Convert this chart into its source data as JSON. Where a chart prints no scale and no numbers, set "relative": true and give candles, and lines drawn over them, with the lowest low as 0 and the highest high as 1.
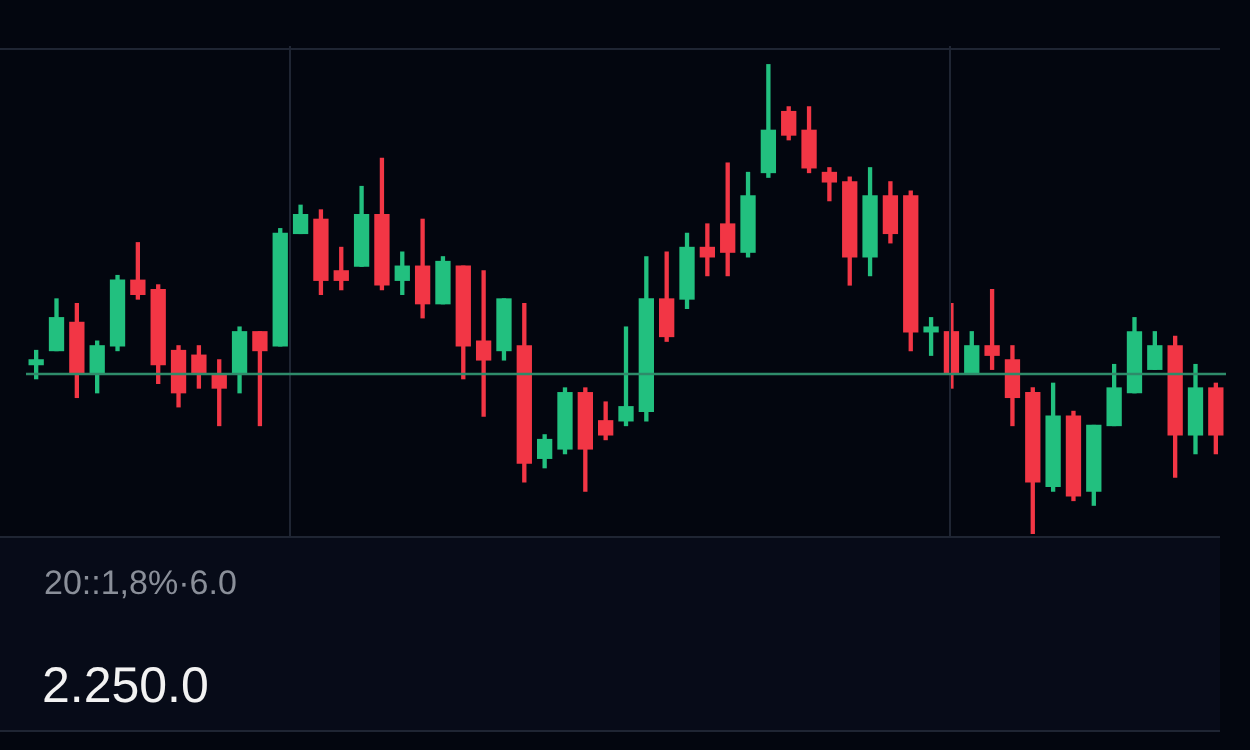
{
  "chart_data": {
    "type": "candlestick",
    "relative": true,
    "categories": [
      null,
      null,
      null,
      null,
      null,
      null,
      null,
      null,
      null,
      null,
      null,
      null,
      null,
      null,
      null,
      null,
      null,
      null,
      null,
      null,
      null,
      null,
      null,
      null,
      null,
      null,
      null,
      null,
      null,
      null,
      null,
      null,
      null,
      null,
      null,
      null,
      null,
      null,
      null,
      null,
      null,
      null,
      null,
      null,
      null,
      null,
      null,
      null,
      null,
      null,
      null,
      null,
      null,
      null,
      null,
      null,
      null,
      null,
      null
    ],
    "ohlc": [
      [
        0.36,
        0.39,
        0.33,
        0.37
      ],
      [
        0.39,
        0.5,
        0.39,
        0.46
      ],
      [
        0.45,
        0.49,
        0.29,
        0.34
      ],
      [
        0.34,
        0.41,
        0.3,
        0.4
      ],
      [
        0.4,
        0.55,
        0.39,
        0.54
      ],
      [
        0.54,
        0.62,
        0.5,
        0.51
      ],
      [
        0.52,
        0.53,
        0.32,
        0.36
      ],
      [
        0.39,
        0.4,
        0.27,
        0.3
      ],
      [
        0.38,
        0.4,
        0.31,
        0.34
      ],
      [
        0.34,
        0.37,
        0.23,
        0.31
      ],
      [
        0.34,
        0.44,
        0.3,
        0.43
      ],
      [
        0.43,
        0.43,
        0.23,
        0.39
      ],
      [
        0.4,
        0.65,
        0.4,
        0.64
      ],
      [
        0.64,
        0.7,
        0.64,
        0.68
      ],
      [
        0.67,
        0.69,
        0.51,
        0.54
      ],
      [
        0.56,
        0.61,
        0.52,
        0.54
      ],
      [
        0.57,
        0.74,
        0.57,
        0.68
      ],
      [
        0.68,
        0.8,
        0.52,
        0.53
      ],
      [
        0.54,
        0.6,
        0.51,
        0.57
      ],
      [
        0.57,
        0.67,
        0.46,
        0.49
      ],
      [
        0.49,
        0.59,
        0.49,
        0.58
      ],
      [
        0.57,
        0.57,
        0.33,
        0.4
      ],
      [
        0.41,
        0.56,
        0.25,
        0.37
      ],
      [
        0.39,
        0.5,
        0.37,
        0.5
      ],
      [
        0.4,
        0.49,
        0.11,
        0.15
      ],
      [
        0.16,
        0.21,
        0.14,
        0.2
      ],
      [
        0.18,
        0.31,
        0.17,
        0.3
      ],
      [
        0.3,
        0.31,
        0.09,
        0.18
      ],
      [
        0.24,
        0.28,
        0.2,
        0.21
      ],
      [
        0.24,
        0.44,
        0.23,
        0.27
      ],
      [
        0.26,
        0.59,
        0.24,
        0.5
      ],
      [
        0.5,
        0.6,
        0.41,
        0.42
      ],
      [
        0.5,
        0.64,
        0.48,
        0.61
      ],
      [
        0.61,
        0.66,
        0.55,
        0.59
      ],
      [
        0.66,
        0.79,
        0.55,
        0.6
      ],
      [
        0.6,
        0.77,
        0.59,
        0.72
      ],
      [
        0.77,
        1.0,
        0.76,
        0.86
      ],
      [
        0.9,
        0.91,
        0.84,
        0.85
      ],
      [
        0.86,
        0.91,
        0.77,
        0.78
      ],
      [
        0.77,
        0.78,
        0.71,
        0.75
      ],
      [
        0.75,
        0.76,
        0.53,
        0.59
      ],
      [
        0.59,
        0.78,
        0.55,
        0.72
      ],
      [
        0.72,
        0.75,
        0.62,
        0.64
      ],
      [
        0.72,
        0.73,
        0.39,
        0.43
      ],
      [
        0.43,
        0.46,
        0.38,
        0.44
      ],
      [
        0.43,
        0.49,
        0.31,
        0.34
      ],
      [
        0.34,
        0.43,
        0.34,
        0.4
      ],
      [
        0.4,
        0.52,
        0.35,
        0.38
      ],
      [
        0.37,
        0.4,
        0.23,
        0.29
      ],
      [
        0.3,
        0.31,
        0.0,
        0.11
      ],
      [
        0.1,
        0.32,
        0.09,
        0.25
      ],
      [
        0.25,
        0.26,
        0.07,
        0.08
      ],
      [
        0.09,
        0.23,
        0.06,
        0.23
      ],
      [
        0.23,
        0.36,
        0.23,
        0.31
      ],
      [
        0.3,
        0.46,
        0.3,
        0.43
      ],
      [
        0.35,
        0.43,
        0.35,
        0.4
      ],
      [
        0.4,
        0.42,
        0.12,
        0.21
      ],
      [
        0.21,
        0.36,
        0.17,
        0.31
      ],
      [
        0.31,
        0.32,
        0.17,
        0.21
      ]
    ],
    "colors": [
      "#22c07f",
      "#22c07f",
      "#f23645",
      "#22c07f",
      "#22c07f",
      "#f23645",
      "#f23645",
      "#f23645",
      "#f23645",
      "#f23645",
      "#22c07f",
      "#f23645",
      "#22c07f",
      "#22c07f",
      "#f23645",
      "#f23645",
      "#22c07f",
      "#f23645",
      "#22c07f",
      "#f23645",
      "#22c07f",
      "#f23645",
      "#f23645",
      "#22c07f",
      "#f23645",
      "#22c07f",
      "#22c07f",
      "#f23645",
      "#f23645",
      "#22c07f",
      "#22c07f",
      "#f23645",
      "#22c07f",
      "#f23645",
      "#f23645",
      "#22c07f",
      "#22c07f",
      "#f23645",
      "#f23645",
      "#f23645",
      "#f23645",
      "#22c07f",
      "#f23645",
      "#f23645",
      "#22c07f",
      "#f23645",
      "#22c07f",
      "#f23645",
      "#f23645",
      "#f23645",
      "#22c07f",
      "#f23645",
      "#22c07f",
      "#22c07f",
      "#22c07f",
      "#22c07f",
      "#f23645",
      "#22c07f",
      "#f23645"
    ],
    "ref_lines": [
      {
        "axis": "y",
        "value": 0.34,
        "color": "#2e8b6a"
      }
    ],
    "annotations": [
      "20::1,8%·6.0",
      "2.250.0"
    ]
  }
}
